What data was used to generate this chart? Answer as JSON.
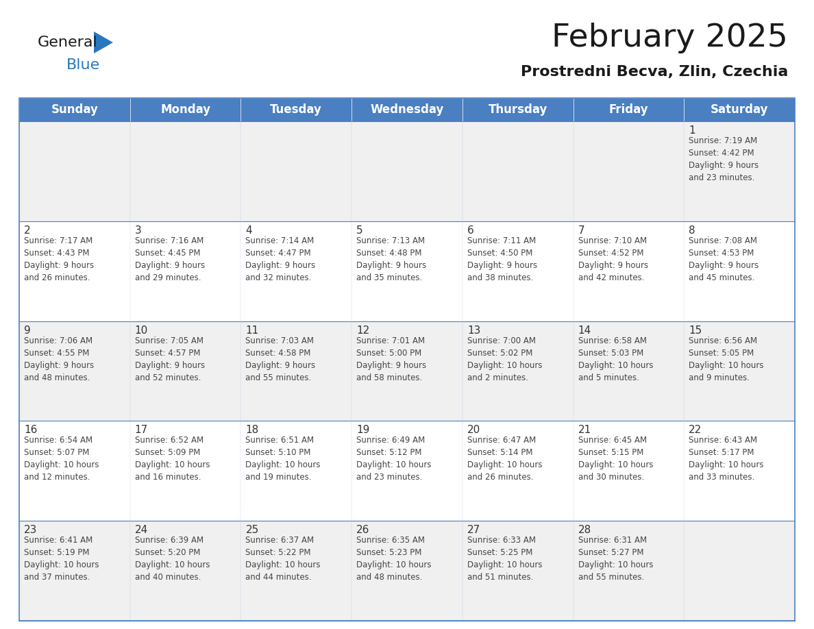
{
  "title": "February 2025",
  "subtitle": "Prostredni Becva, Zlin, Czechia",
  "days_of_week": [
    "Sunday",
    "Monday",
    "Tuesday",
    "Wednesday",
    "Thursday",
    "Friday",
    "Saturday"
  ],
  "header_bg": "#4a7fc1",
  "header_text": "#FFFFFF",
  "cell_bg_odd": "#f0f0f0",
  "cell_bg_even": "#FFFFFF",
  "border_color": "#4a7fc1",
  "day_number_color": "#333333",
  "text_color": "#444444",
  "calendar_data": [
    [
      {
        "day": null,
        "info": null
      },
      {
        "day": null,
        "info": null
      },
      {
        "day": null,
        "info": null
      },
      {
        "day": null,
        "info": null
      },
      {
        "day": null,
        "info": null
      },
      {
        "day": null,
        "info": null
      },
      {
        "day": 1,
        "info": "Sunrise: 7:19 AM\nSunset: 4:42 PM\nDaylight: 9 hours\nand 23 minutes."
      }
    ],
    [
      {
        "day": 2,
        "info": "Sunrise: 7:17 AM\nSunset: 4:43 PM\nDaylight: 9 hours\nand 26 minutes."
      },
      {
        "day": 3,
        "info": "Sunrise: 7:16 AM\nSunset: 4:45 PM\nDaylight: 9 hours\nand 29 minutes."
      },
      {
        "day": 4,
        "info": "Sunrise: 7:14 AM\nSunset: 4:47 PM\nDaylight: 9 hours\nand 32 minutes."
      },
      {
        "day": 5,
        "info": "Sunrise: 7:13 AM\nSunset: 4:48 PM\nDaylight: 9 hours\nand 35 minutes."
      },
      {
        "day": 6,
        "info": "Sunrise: 7:11 AM\nSunset: 4:50 PM\nDaylight: 9 hours\nand 38 minutes."
      },
      {
        "day": 7,
        "info": "Sunrise: 7:10 AM\nSunset: 4:52 PM\nDaylight: 9 hours\nand 42 minutes."
      },
      {
        "day": 8,
        "info": "Sunrise: 7:08 AM\nSunset: 4:53 PM\nDaylight: 9 hours\nand 45 minutes."
      }
    ],
    [
      {
        "day": 9,
        "info": "Sunrise: 7:06 AM\nSunset: 4:55 PM\nDaylight: 9 hours\nand 48 minutes."
      },
      {
        "day": 10,
        "info": "Sunrise: 7:05 AM\nSunset: 4:57 PM\nDaylight: 9 hours\nand 52 minutes."
      },
      {
        "day": 11,
        "info": "Sunrise: 7:03 AM\nSunset: 4:58 PM\nDaylight: 9 hours\nand 55 minutes."
      },
      {
        "day": 12,
        "info": "Sunrise: 7:01 AM\nSunset: 5:00 PM\nDaylight: 9 hours\nand 58 minutes."
      },
      {
        "day": 13,
        "info": "Sunrise: 7:00 AM\nSunset: 5:02 PM\nDaylight: 10 hours\nand 2 minutes."
      },
      {
        "day": 14,
        "info": "Sunrise: 6:58 AM\nSunset: 5:03 PM\nDaylight: 10 hours\nand 5 minutes."
      },
      {
        "day": 15,
        "info": "Sunrise: 6:56 AM\nSunset: 5:05 PM\nDaylight: 10 hours\nand 9 minutes."
      }
    ],
    [
      {
        "day": 16,
        "info": "Sunrise: 6:54 AM\nSunset: 5:07 PM\nDaylight: 10 hours\nand 12 minutes."
      },
      {
        "day": 17,
        "info": "Sunrise: 6:52 AM\nSunset: 5:09 PM\nDaylight: 10 hours\nand 16 minutes."
      },
      {
        "day": 18,
        "info": "Sunrise: 6:51 AM\nSunset: 5:10 PM\nDaylight: 10 hours\nand 19 minutes."
      },
      {
        "day": 19,
        "info": "Sunrise: 6:49 AM\nSunset: 5:12 PM\nDaylight: 10 hours\nand 23 minutes."
      },
      {
        "day": 20,
        "info": "Sunrise: 6:47 AM\nSunset: 5:14 PM\nDaylight: 10 hours\nand 26 minutes."
      },
      {
        "day": 21,
        "info": "Sunrise: 6:45 AM\nSunset: 5:15 PM\nDaylight: 10 hours\nand 30 minutes."
      },
      {
        "day": 22,
        "info": "Sunrise: 6:43 AM\nSunset: 5:17 PM\nDaylight: 10 hours\nand 33 minutes."
      }
    ],
    [
      {
        "day": 23,
        "info": "Sunrise: 6:41 AM\nSunset: 5:19 PM\nDaylight: 10 hours\nand 37 minutes."
      },
      {
        "day": 24,
        "info": "Sunrise: 6:39 AM\nSunset: 5:20 PM\nDaylight: 10 hours\nand 40 minutes."
      },
      {
        "day": 25,
        "info": "Sunrise: 6:37 AM\nSunset: 5:22 PM\nDaylight: 10 hours\nand 44 minutes."
      },
      {
        "day": 26,
        "info": "Sunrise: 6:35 AM\nSunset: 5:23 PM\nDaylight: 10 hours\nand 48 minutes."
      },
      {
        "day": 27,
        "info": "Sunrise: 6:33 AM\nSunset: 5:25 PM\nDaylight: 10 hours\nand 51 minutes."
      },
      {
        "day": 28,
        "info": "Sunrise: 6:31 AM\nSunset: 5:27 PM\nDaylight: 10 hours\nand 55 minutes."
      },
      {
        "day": null,
        "info": null
      }
    ]
  ],
  "logo_general_color": "#1a1a1a",
  "logo_blue_color": "#2878c0",
  "title_fontsize": 34,
  "subtitle_fontsize": 16,
  "header_fontsize": 12,
  "day_num_fontsize": 11,
  "info_fontsize": 8.5
}
